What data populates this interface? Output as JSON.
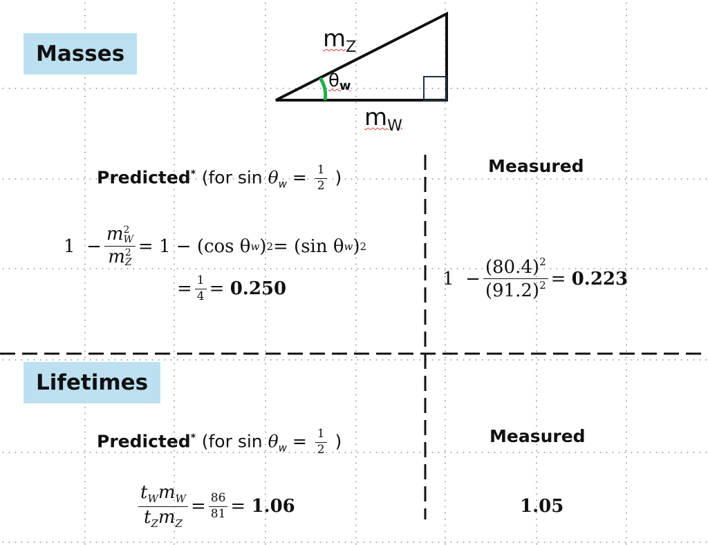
{
  "masses": {
    "label": "Masses",
    "triangle": {
      "hypotenuse_label": "m",
      "hypotenuse_sub": "Z",
      "base_label": "m",
      "base_sub": "W",
      "angle_label": "θ",
      "angle_sub": "w"
    },
    "predicted": {
      "heading": "Predicted",
      "star": "*",
      "condition_prefix": "(for sin ",
      "theta": "θ",
      "theta_sub": "w",
      "equals": " = ",
      "frac_num": "1",
      "frac_den": "2",
      "close": " )",
      "line1_one": "1",
      "line1_minus": "−",
      "line1_num_m": "m",
      "line1_num_sub": "W",
      "line1_num_sup": "2",
      "line1_den_m": "m",
      "line1_den_sub": "Z",
      "line1_den_sup": "2",
      "line1_rest1": "= 1 − (cos θ",
      "line1_rest1_sub": "w",
      "line1_rest1_close": ")",
      "line1_rest1_sup": "2",
      "line1_rest2": " =  (sin θ",
      "line1_rest2_sub": "w",
      "line1_rest2_close": ")",
      "line1_rest2_sup": "2",
      "line2_eq": "=",
      "line2_num": "1",
      "line2_den": "4",
      "line2_eq2": "=",
      "line2_value": "0.250"
    },
    "measured": {
      "heading": "Measured",
      "one": "1",
      "minus": "−",
      "num": "(80.4)",
      "num_sup": "2",
      "den": "(91.2)",
      "den_sup": "2",
      "eq": "=",
      "value": "0.223"
    }
  },
  "lifetimes": {
    "label": "Lifetimes",
    "predicted": {
      "heading": "Predicted",
      "star": "*",
      "condition_prefix": "(for sin ",
      "theta": "θ",
      "theta_sub": "w",
      "equals": " = ",
      "frac_num": "1",
      "frac_den": "2",
      "close": " )",
      "num_t": "t",
      "num_t_sub": "W",
      "num_m": "m",
      "num_m_sub": "W",
      "den_t": "t",
      "den_t_sub": "Z",
      "den_m": "m",
      "den_m_sub": "Z",
      "eq": "=",
      "frac_num2": "86",
      "frac_den2": "81",
      "eq2": "=",
      "value": "1.06"
    },
    "measured": {
      "heading": "Measured",
      "value": "1.05"
    }
  }
}
